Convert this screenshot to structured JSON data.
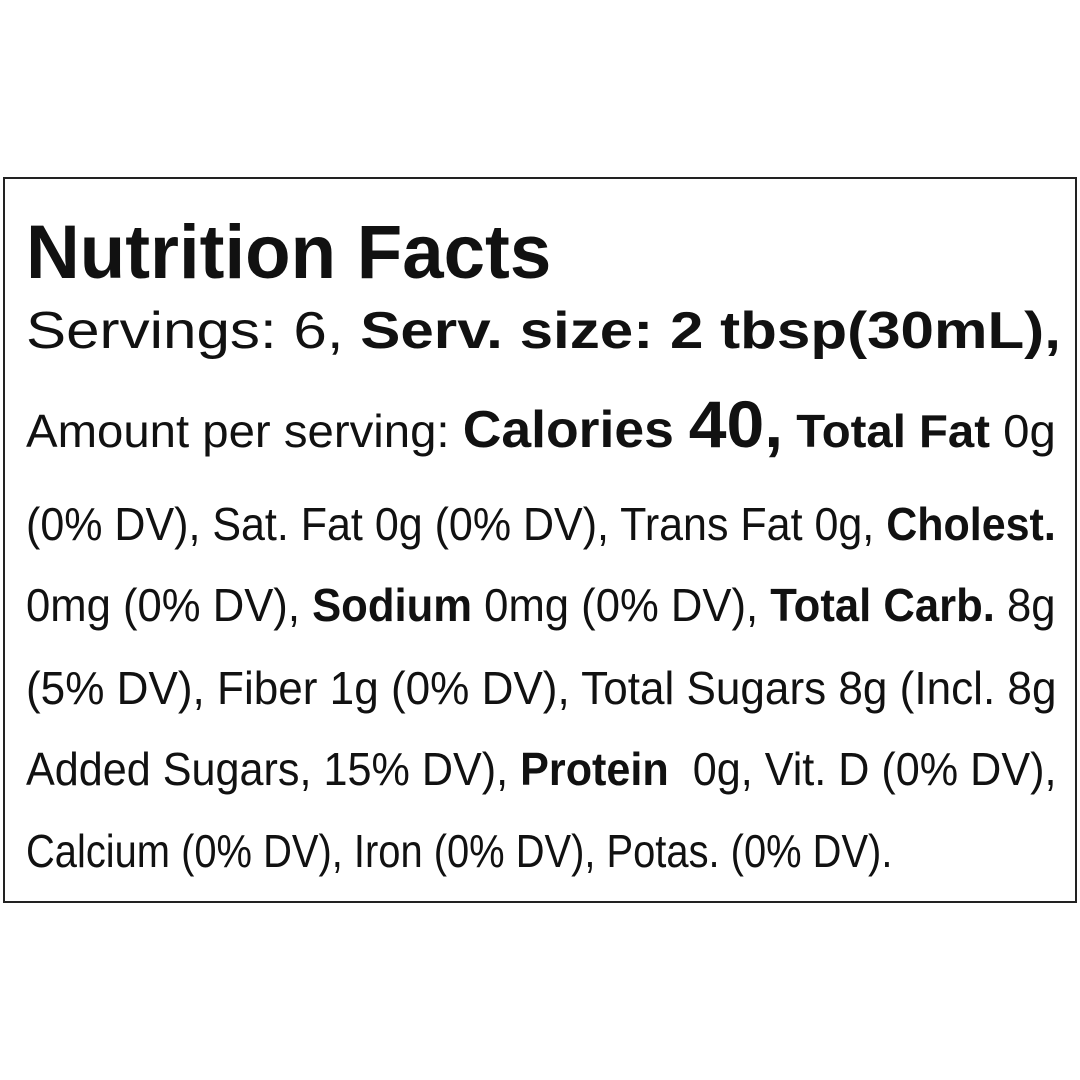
{
  "label": {
    "title": "Nutrition Facts",
    "servings": {
      "text": "Servings: 6, ",
      "size_label": "Serv. size: 2 tbsp(30mL),"
    },
    "line3": {
      "amount": "Amount per serving: ",
      "calories_label": "Calories ",
      "calories_value": "40,",
      "total_fat_label": " Total Fat",
      "total_fat_value": " 0g"
    },
    "line4": {
      "text": "(0% DV), Sat. Fat 0g (0% DV), Trans Fat 0g, ",
      "cholest_label": "Cholest."
    },
    "line5": {
      "cholest_value": "0mg (0% DV), ",
      "sodium_label": "Sodium",
      "sodium_value": " 0mg (0% DV), ",
      "carb_label": "Total Carb.",
      "carb_value": " 8g"
    },
    "line6": {
      "text": "(5% DV), Fiber 1g (0% DV), Total Sugars 8g (Incl. 8g"
    },
    "line7": {
      "text": "Added Sugars, 15% DV), ",
      "protein_label": "Protein",
      "protein_value": "  0g, Vit. D (0% DV),"
    },
    "line8": {
      "text": "Calcium (0% DV), Iron (0% DV), Potas. (0% DV)."
    }
  }
}
